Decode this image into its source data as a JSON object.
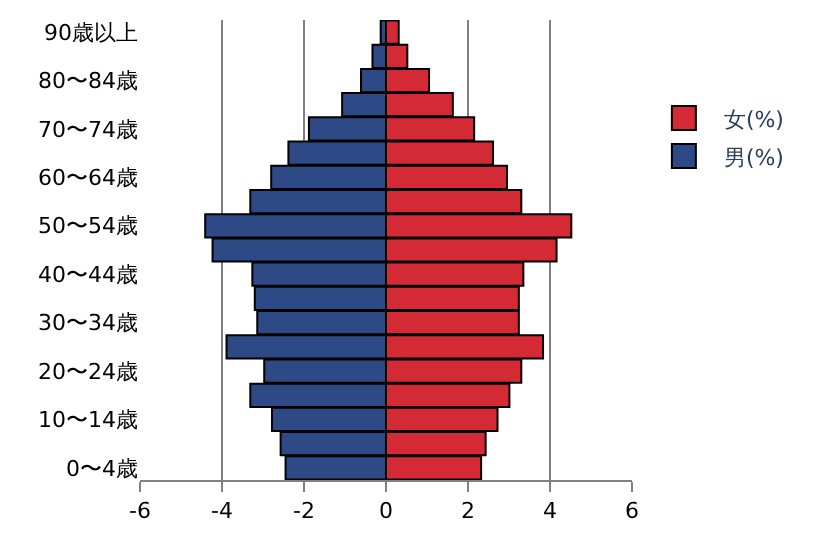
{
  "chart_data": {
    "type": "bar",
    "orientation": "horizontal",
    "stacked": true,
    "categories": [
      "90歳以上",
      null,
      "80〜84歳",
      null,
      "70〜74歳",
      null,
      "60〜64歳",
      null,
      "50〜54歳",
      null,
      "40〜44歳",
      null,
      "30〜34歳",
      null,
      "20〜24歳",
      null,
      "10〜14歳",
      null,
      "0〜4歳"
    ],
    "series": [
      {
        "name": "女(%)",
        "color": "#d42a36",
        "values": [
          0.31,
          0.52,
          1.05,
          1.63,
          2.15,
          2.61,
          2.95,
          3.3,
          4.52,
          4.16,
          3.35,
          3.24,
          3.24,
          3.83,
          3.3,
          3.01,
          2.72,
          2.43,
          2.32
        ]
      },
      {
        "name": "男(%)",
        "color": "#2e4a86",
        "values": [
          -0.13,
          -0.33,
          -0.61,
          -1.07,
          -1.88,
          -2.38,
          -2.8,
          -3.31,
          -4.41,
          -4.23,
          -3.26,
          -3.2,
          -3.14,
          -3.89,
          -2.97,
          -3.31,
          -2.78,
          -2.57,
          -2.45
        ]
      }
    ],
    "xlim": [
      -6,
      6
    ],
    "xticks": [
      -6,
      -4,
      -2,
      0,
      2,
      4,
      6
    ],
    "grid": "x",
    "legend": "right"
  }
}
